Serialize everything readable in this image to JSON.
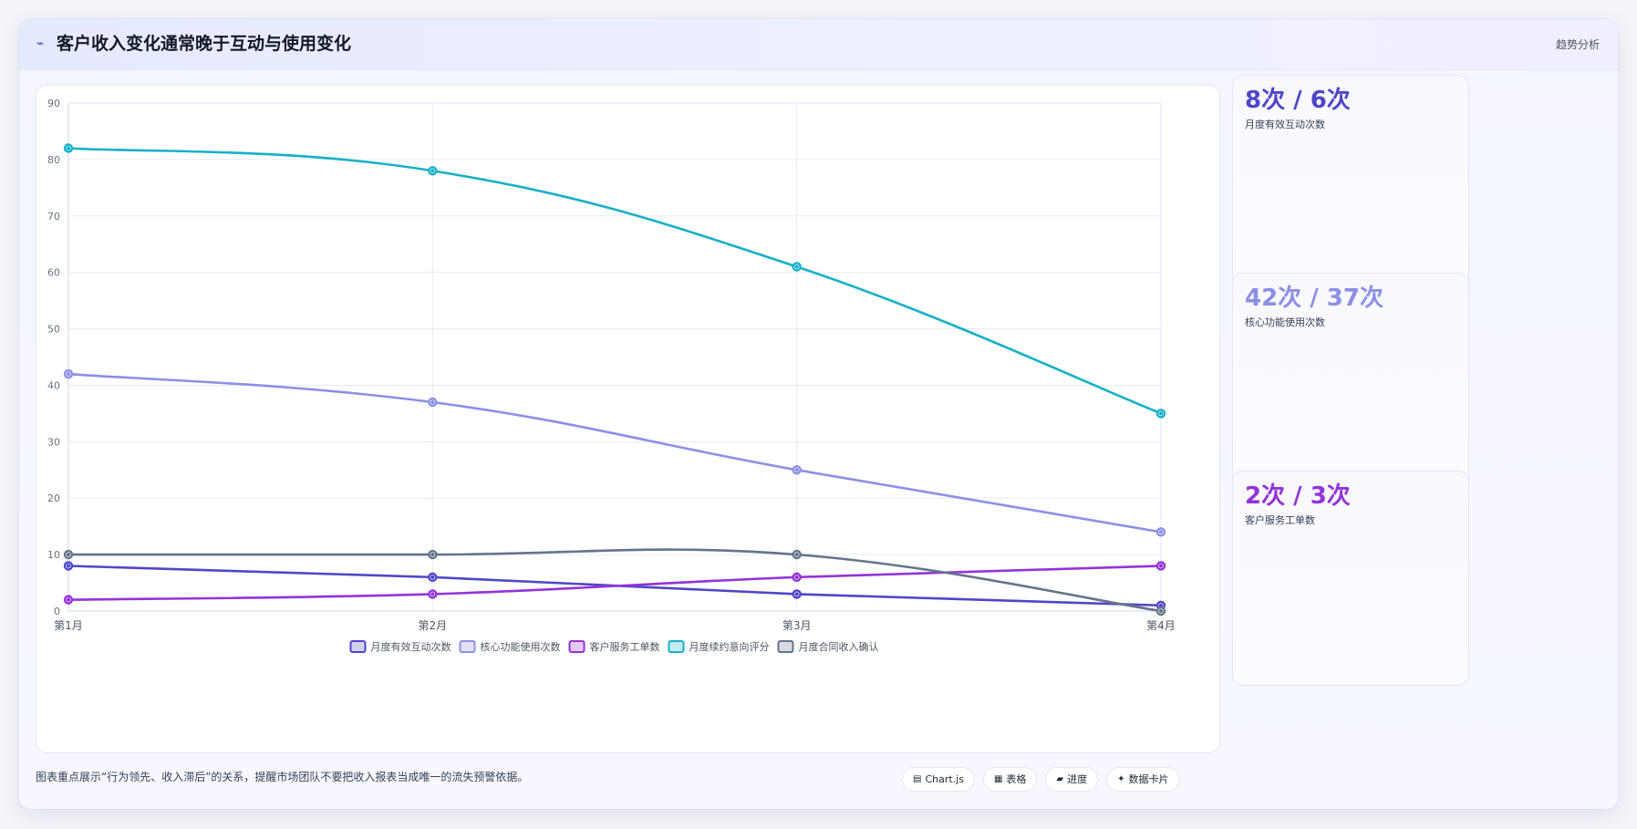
{
  "header": {
    "icon": "trend-icon",
    "title": "客户收入变化通常晚于互动与使用变化",
    "tag": "趋势分析"
  },
  "chart_data": {
    "type": "line",
    "title": "",
    "xlabel": "",
    "ylabel": "",
    "categories": [
      "第1月",
      "第2月",
      "第3月",
      "第4月"
    ],
    "ylim": [
      0,
      90
    ],
    "yticks": [
      0,
      10,
      20,
      30,
      40,
      50,
      60,
      70,
      80,
      90
    ],
    "grid": true,
    "legend": "bottom",
    "series": [
      {
        "name": "月度有效互动次数",
        "values": [
          8,
          6,
          3,
          1
        ],
        "color": "#4f46c8"
      },
      {
        "name": "核心功能使用次数",
        "values": [
          42,
          37,
          25,
          14
        ],
        "color": "#8b8fe6"
      },
      {
        "name": "客户服务工单数",
        "values": [
          2,
          3,
          6,
          8
        ],
        "color": "#9333d8"
      },
      {
        "name": "月度续约意向评分",
        "values": [
          82,
          78,
          61,
          35
        ],
        "color": "#16b0c8"
      },
      {
        "name": "月度合同收入确认",
        "values": [
          10,
          10,
          10,
          0
        ],
        "color": "#64748b"
      }
    ]
  },
  "kpis": [
    {
      "value": "8次 / 6次",
      "label": "月度有效互动次数",
      "color": "#4f46c8"
    },
    {
      "value": "42次 / 37次",
      "label": "核心功能使用次数",
      "color": "#8b8fe6"
    },
    {
      "value": "2次 / 3次",
      "label": "客户服务工单数",
      "color": "#9333d8"
    }
  ],
  "footer": {
    "note": "图表重点展示“行为领先、收入滞后”的关系，提醒市场团队不要把收入报表当成唯一的流失预警依据。",
    "pills": [
      {
        "icon": "chart-icon",
        "glyph": "▤",
        "label": "Chart.js"
      },
      {
        "icon": "table-icon",
        "glyph": "▦",
        "label": "表格"
      },
      {
        "icon": "progress-icon",
        "glyph": "▰",
        "label": "进度"
      },
      {
        "icon": "card-icon",
        "glyph": "✦",
        "label": "数据卡片"
      }
    ]
  }
}
